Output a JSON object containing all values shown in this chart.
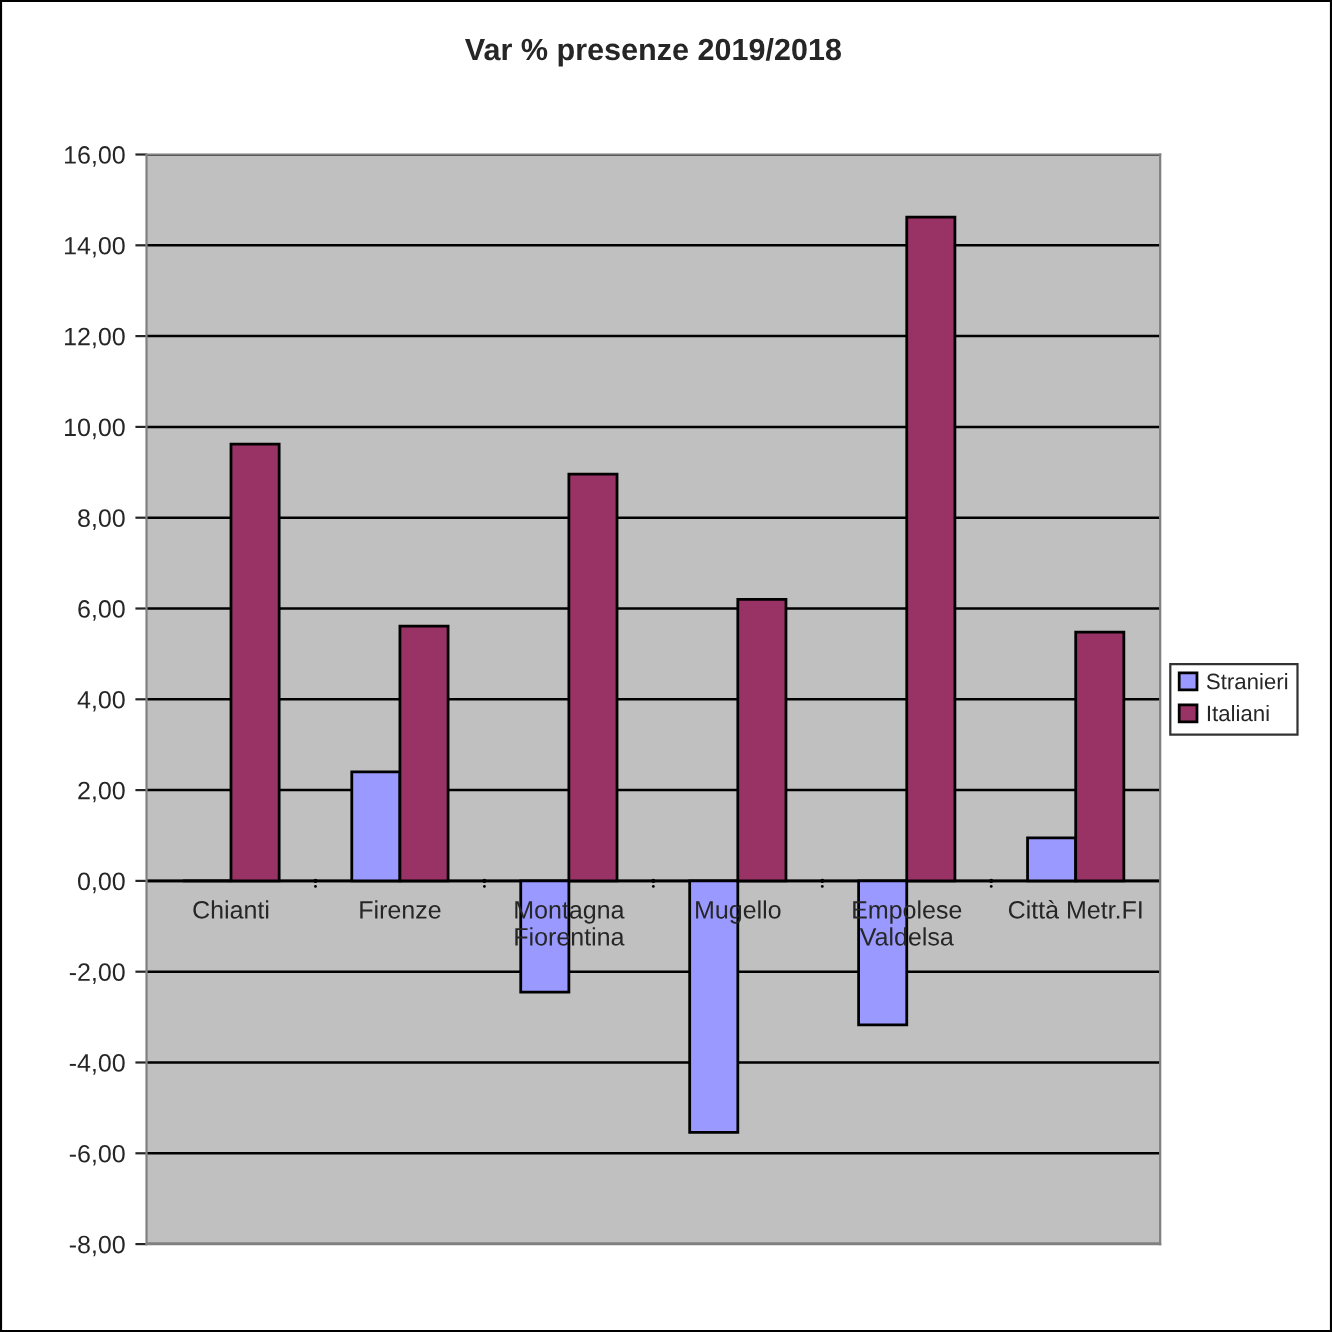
{
  "chart_data": {
    "type": "bar",
    "title": "Var % presenze 2019/2018",
    "categories": [
      "Chianti",
      "Firenze",
      "Montagna\nFiorentina",
      "Mugello",
      "Empolese\nValdelsa",
      "Città Metr.FI"
    ],
    "series": [
      {
        "name": "Stranieri",
        "color": "#9999ff",
        "values": [
          0,
          2.4,
          -2.45,
          -5.54,
          -3.17,
          0.95
        ]
      },
      {
        "name": "Italiani",
        "color": "#993366",
        "values": [
          9.62,
          5.61,
          8.96,
          6.2,
          14.62,
          5.48
        ]
      }
    ],
    "ylim": [
      -8,
      16
    ],
    "yticks": [
      {
        "value": -8,
        "label": "-8,00"
      },
      {
        "value": -6,
        "label": "-6,00"
      },
      {
        "value": -4,
        "label": "-4,00"
      },
      {
        "value": -2,
        "label": "-2,00"
      },
      {
        "value": 0,
        "label": "0,00"
      },
      {
        "value": 2,
        "label": "2,00"
      },
      {
        "value": 4,
        "label": "4,00"
      },
      {
        "value": 6,
        "label": "6,00"
      },
      {
        "value": 8,
        "label": "8,00"
      },
      {
        "value": 10,
        "label": "10,00"
      },
      {
        "value": 12,
        "label": "12,00"
      },
      {
        "value": 14,
        "label": "14,00"
      },
      {
        "value": 16,
        "label": "16,00"
      }
    ],
    "grid": "y",
    "legend": "right"
  }
}
